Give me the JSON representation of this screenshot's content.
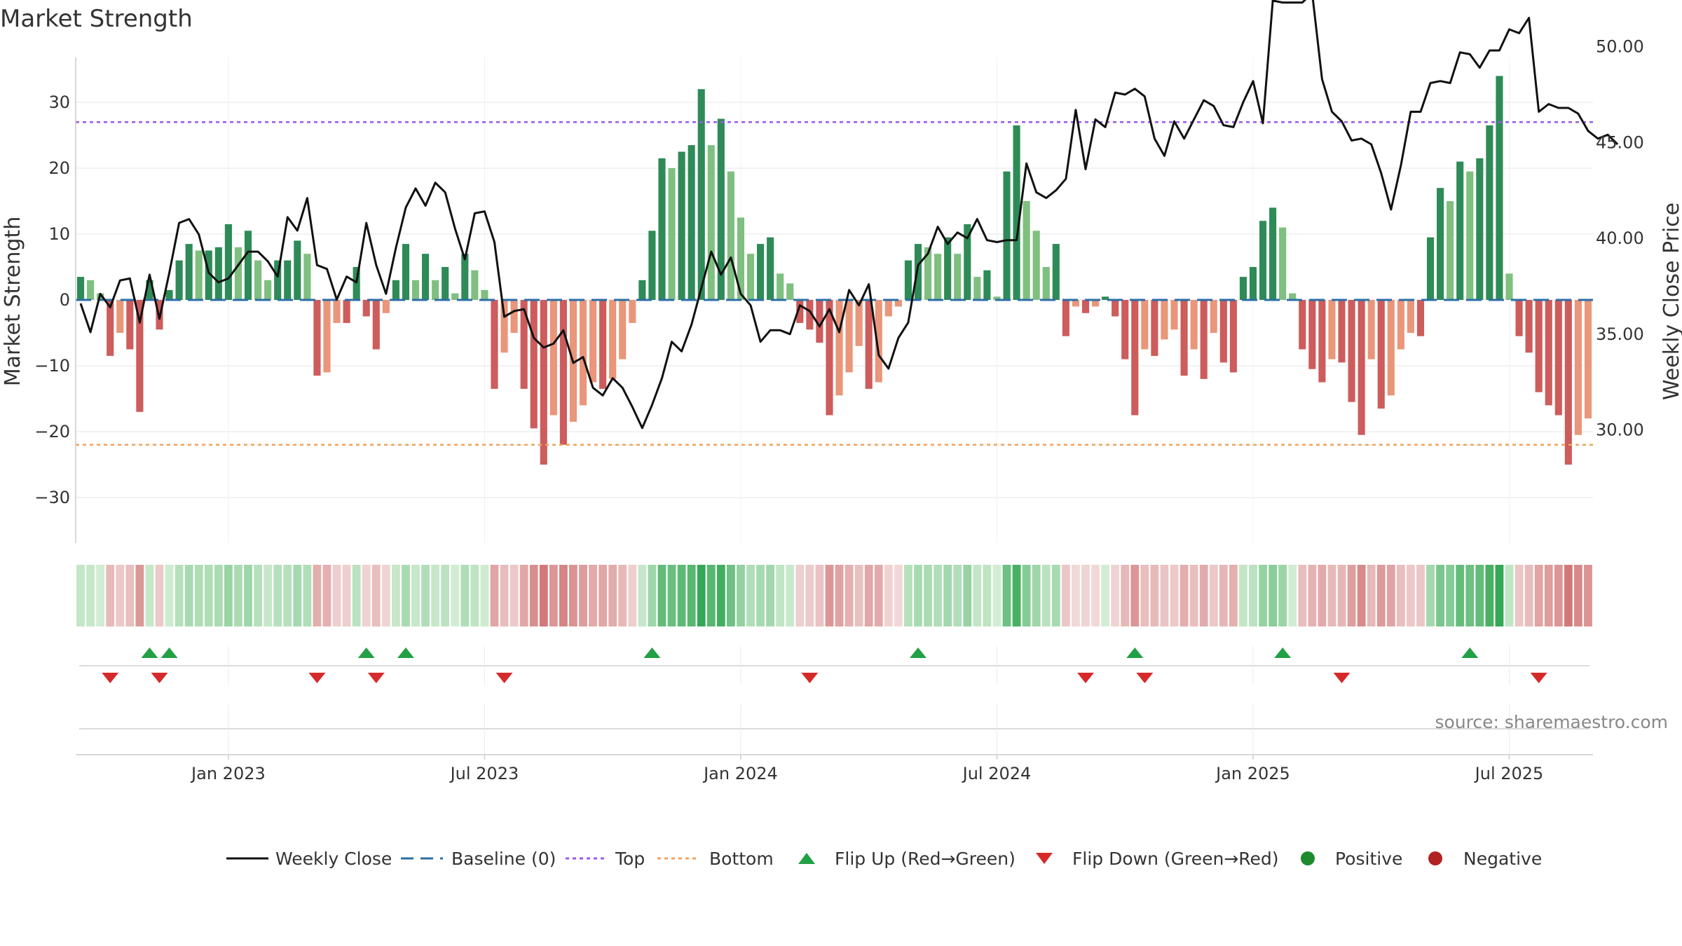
{
  "chart_data": {
    "type": "bar",
    "title": "Market Strength",
    "ylabel_left": "Market Strength",
    "ylabel_right": "Weekly Close Price",
    "ylim_left": [
      -37,
      37
    ],
    "ylim_right": [
      28.5,
      56.5
    ],
    "left_ticks": [
      "30",
      "20",
      "10",
      "0",
      "−10",
      "−20",
      "−30"
    ],
    "left_tick_values": [
      30,
      20,
      10,
      0,
      -10,
      -20,
      -30
    ],
    "right_ticks": [
      "50.00",
      "45.00",
      "40.00",
      "35.00",
      "30.00"
    ],
    "right_tick_values": [
      50,
      45,
      40,
      35,
      30
    ],
    "x_ticks": [
      "Jan 2023",
      "Jul 2023",
      "Jan 2024",
      "Jul 2024",
      "Jan 2025",
      "Jul 2025"
    ],
    "x_tick_weeks": [
      15,
      41,
      67,
      93,
      119,
      145
    ],
    "top_level": 27,
    "bottom_level": -22,
    "baseline": 0,
    "weekly_close_series": "Weekly Close",
    "strength_values": [
      3.5,
      3,
      1,
      -8.5,
      -5,
      -7.5,
      -17,
      3,
      -4.5,
      1.5,
      6,
      8.5,
      7.5,
      7.5,
      8,
      11.5,
      8,
      10.5,
      6,
      3,
      6,
      6,
      9,
      7,
      -11.5,
      -11,
      -3.5,
      -3.5,
      5,
      -2.5,
      -7.5,
      -2,
      3,
      8.5,
      3,
      7,
      3,
      5,
      1,
      7,
      4.5,
      1.5,
      -13.5,
      -8,
      -5,
      -13.5,
      -19.5,
      -25,
      -17.5,
      -22,
      -18.5,
      -16,
      -12.5,
      -13.5,
      -12,
      -9,
      -3.5,
      3,
      10.5,
      21.5,
      20,
      22.5,
      23.5,
      32,
      23.5,
      27.5,
      19.5,
      12.5,
      7,
      8.5,
      9.5,
      4,
      2.5,
      -3.5,
      -4.5,
      -6.5,
      -17.5,
      -14.5,
      -11,
      -7,
      -13.5,
      -12.5,
      -2.5,
      -1,
      6,
      8.5,
      8,
      7,
      9.5,
      7,
      11.5,
      3.5,
      4.5,
      0.5,
      19.5,
      26.5,
      15,
      10.5,
      5,
      8.5,
      -5.5,
      -1,
      -2,
      -1,
      0.5,
      -2.5,
      -9,
      -17.5,
      -7.5,
      -8.5,
      -6,
      -4.5,
      -11.5,
      -7.5,
      -12,
      -5,
      -9.5,
      -11,
      3.5,
      5,
      12,
      14,
      11,
      1,
      -7.5,
      -10.5,
      -12.5,
      -9,
      -9.5,
      -15.5,
      -20.5,
      -9,
      -16.5,
      -14.5,
      -7.5,
      -5,
      -5.5,
      9.5,
      17,
      15,
      21,
      19.5,
      21.5,
      26.5,
      34,
      4,
      -5.5,
      -8,
      -14,
      -16,
      -17.5,
      -25,
      -20.5,
      -18
    ],
    "weekly_close": [
      36.6,
      35.1,
      37.1,
      36.4,
      37.8,
      37.9,
      35.6,
      38.1,
      35.8,
      38.2,
      40.8,
      41,
      40.2,
      38.2,
      37.7,
      37.9,
      38.6,
      39.3,
      39.3,
      38.8,
      38,
      41.1,
      40.4,
      42.1,
      38.6,
      38.4,
      36.8,
      38,
      37.7,
      40.8,
      38.6,
      37.1,
      39.5,
      41.6,
      42.6,
      41.7,
      42.9,
      42.4,
      40.5,
      38.9,
      41.3,
      41.4,
      39.8,
      35.9,
      36.2,
      36.3,
      34.8,
      34.3,
      34.5,
      35.2,
      33.5,
      33.8,
      32.2,
      31.8,
      32.7,
      32.2,
      31.2,
      30.1,
      31.3,
      32.7,
      34.6,
      34.1,
      35.5,
      37.4,
      39.3,
      38.1,
      39,
      37.1,
      36.5,
      34.6,
      35.2,
      35.2,
      35,
      36.5,
      36.2,
      35.4,
      36.3,
      35.1,
      37.3,
      36.5,
      37.6,
      33.9,
      33.2,
      34.8,
      35.6,
      38.6,
      39.2,
      40.6,
      39.7,
      40.3,
      40,
      41,
      39.9,
      39.8,
      39.9,
      39.9,
      43.9,
      42.4,
      42.1,
      42.5,
      43.1,
      46.7,
      43.6,
      46.2,
      45.8,
      47.6,
      47.5,
      47.8,
      47.4,
      45.2,
      44.3,
      46.1,
      45.2,
      46.2,
      47.2,
      46.9,
      45.9,
      45.8,
      47.1,
      48.2,
      46,
      52.4,
      52.3,
      52.3,
      52.3,
      52.8,
      48.3,
      46.6,
      46.1,
      45.1,
      45.2,
      44.9,
      43.4,
      41.5,
      43.8,
      46.6,
      46.6,
      48.1,
      48.2,
      48.1,
      49.7,
      49.6,
      48.9,
      49.8,
      49.8,
      50.9,
      50.7,
      51.5,
      46.6,
      47,
      46.8,
      46.8,
      46.5,
      45.6,
      45.2,
      45.4,
      44.9
    ],
    "flip_up_weeks": [
      7,
      9,
      29,
      33,
      58,
      85,
      107,
      122,
      141
    ],
    "flip_down_weeks": [
      3,
      8,
      24,
      30,
      43,
      74,
      102,
      108,
      128,
      148
    ],
    "source_text": "source: sharemaestro.com",
    "legend": [
      {
        "key": "close",
        "label": "Weekly Close"
      },
      {
        "key": "baseline",
        "label": "Baseline (0)"
      },
      {
        "key": "top",
        "label": "Top"
      },
      {
        "key": "bottom",
        "label": "Bottom"
      },
      {
        "key": "flip_up",
        "label": "Flip Up (Red→Green)"
      },
      {
        "key": "flip_down",
        "label": "Flip Down (Green→Red)"
      },
      {
        "key": "positive",
        "label": "Positive"
      },
      {
        "key": "negative",
        "label": "Negative"
      }
    ],
    "legend_placement": "bottom",
    "colors": {
      "pos_dark": "#2e8b57",
      "pos_light": "#7fbf7f",
      "neg_dark": "#cd5c5c",
      "neg_light": "#e9967a",
      "close_line": "#111111",
      "baseline": "#2c6ea6",
      "top": "#9b59e6",
      "bottom": "#f0a35e",
      "flip_up": "#22a046",
      "flip_down": "#d62a2a",
      "positive_dot": "#1e8a2e",
      "negative_dot": "#b22222",
      "grid": "#e6e6e6",
      "axis": "#cccccc"
    }
  }
}
